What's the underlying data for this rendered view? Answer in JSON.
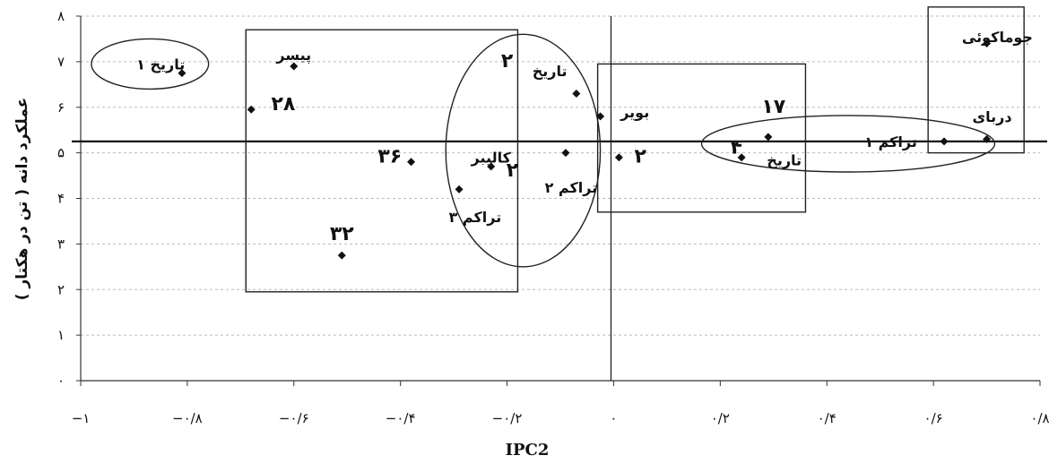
{
  "chart_data": {
    "type": "scatter",
    "title": "",
    "xlabel": "IPC2",
    "ylabel": "عملکرد دانه ( تن در هکتار )",
    "xlim": [
      -1,
      0.8
    ],
    "ylim": [
      0,
      8
    ],
    "grid": true,
    "x_ticks": [
      -1,
      -0.8,
      -0.6,
      -0.4,
      -0.2,
      0,
      0.2,
      0.4,
      0.6,
      0.8
    ],
    "x_tick_labels": [
      "−۱",
      "−۰/۸",
      "−۰/۶",
      "−۰/۴",
      "−۰/۲",
      "۰",
      "۰/۲",
      "۰/۴",
      "۰/۶",
      "۰/۸"
    ],
    "y_ticks": [
      0,
      1,
      2,
      3,
      4,
      5,
      6,
      7,
      8
    ],
    "y_tick_labels": [
      "۰",
      "۱",
      "۲",
      "۳",
      "۴",
      "۵",
      "۶",
      "۷",
      "۸"
    ],
    "reference_lines": {
      "x": -0.005,
      "y": 5.25
    },
    "points": [
      {
        "x": -0.81,
        "y": 6.75
      },
      {
        "x": -0.68,
        "y": 5.95
      },
      {
        "x": -0.6,
        "y": 6.9
      },
      {
        "x": -0.51,
        "y": 2.75
      },
      {
        "x": -0.38,
        "y": 4.8
      },
      {
        "x": -0.29,
        "y": 4.2
      },
      {
        "x": -0.23,
        "y": 4.7
      },
      {
        "x": -0.09,
        "y": 5.0
      },
      {
        "x": -0.07,
        "y": 6.3
      },
      {
        "x": -0.025,
        "y": 5.8
      },
      {
        "x": 0.01,
        "y": 4.9
      },
      {
        "x": 0.24,
        "y": 4.9
      },
      {
        "x": 0.29,
        "y": 5.35
      },
      {
        "x": 0.62,
        "y": 5.25
      },
      {
        "x": 0.7,
        "y": 5.3
      },
      {
        "x": 0.7,
        "y": 7.4
      }
    ],
    "annotations": [
      {
        "text": "تاریخ ۱",
        "x": -0.85,
        "y": 6.95
      },
      {
        "text": "پیسر",
        "x": -0.6,
        "y": 7.15
      },
      {
        "text": "۲۸",
        "x": -0.62,
        "y": 6.05
      },
      {
        "text": "۳۶",
        "x": -0.42,
        "y": 4.9
      },
      {
        "text": "۳۲",
        "x": -0.51,
        "y": 3.2
      },
      {
        "text": "کالیبر",
        "x": -0.23,
        "y": 4.9
      },
      {
        "text": "۲",
        "x": -0.19,
        "y": 4.6
      },
      {
        "text": "تراکم ۳",
        "x": -0.26,
        "y": 3.6
      },
      {
        "text": "تاریخ",
        "x": -0.12,
        "y": 6.8
      },
      {
        "text": "۲",
        "x": -0.2,
        "y": 7.0
      },
      {
        "text": "تراکم ۲",
        "x": -0.08,
        "y": 4.25
      },
      {
        "text": "بویر",
        "x": 0.04,
        "y": 5.9
      },
      {
        "text": "۲",
        "x": 0.05,
        "y": 4.9
      },
      {
        "text": "۱۷",
        "x": 0.3,
        "y": 6.0
      },
      {
        "text": "۴",
        "x": 0.23,
        "y": 5.1
      },
      {
        "text": "تاریخ",
        "x": 0.32,
        "y": 4.85
      },
      {
        "text": "تراکم ۱",
        "x": 0.52,
        "y": 5.25
      },
      {
        "text": "جوماکوئی",
        "x": 0.72,
        "y": 7.55
      },
      {
        "text": "دربای",
        "x": 0.71,
        "y": 5.8
      }
    ],
    "rectangles": [
      {
        "x0": -0.69,
        "x1": -0.18,
        "y0": 1.95,
        "y1": 7.7
      },
      {
        "x0": -0.03,
        "x1": 0.36,
        "y0": 3.7,
        "y1": 6.95
      },
      {
        "x0": 0.59,
        "x1": 0.77,
        "y0": 5.0,
        "y1": 8.2
      }
    ],
    "ellipses": [
      {
        "cx": -0.87,
        "cy": 6.95,
        "rx": 0.11,
        "ry": 0.55
      },
      {
        "cx": -0.17,
        "cy": 5.05,
        "rx": 0.145,
        "ry": 2.55
      },
      {
        "cx": 0.44,
        "cy": 5.2,
        "rx": 0.275,
        "ry": 0.62
      }
    ]
  }
}
